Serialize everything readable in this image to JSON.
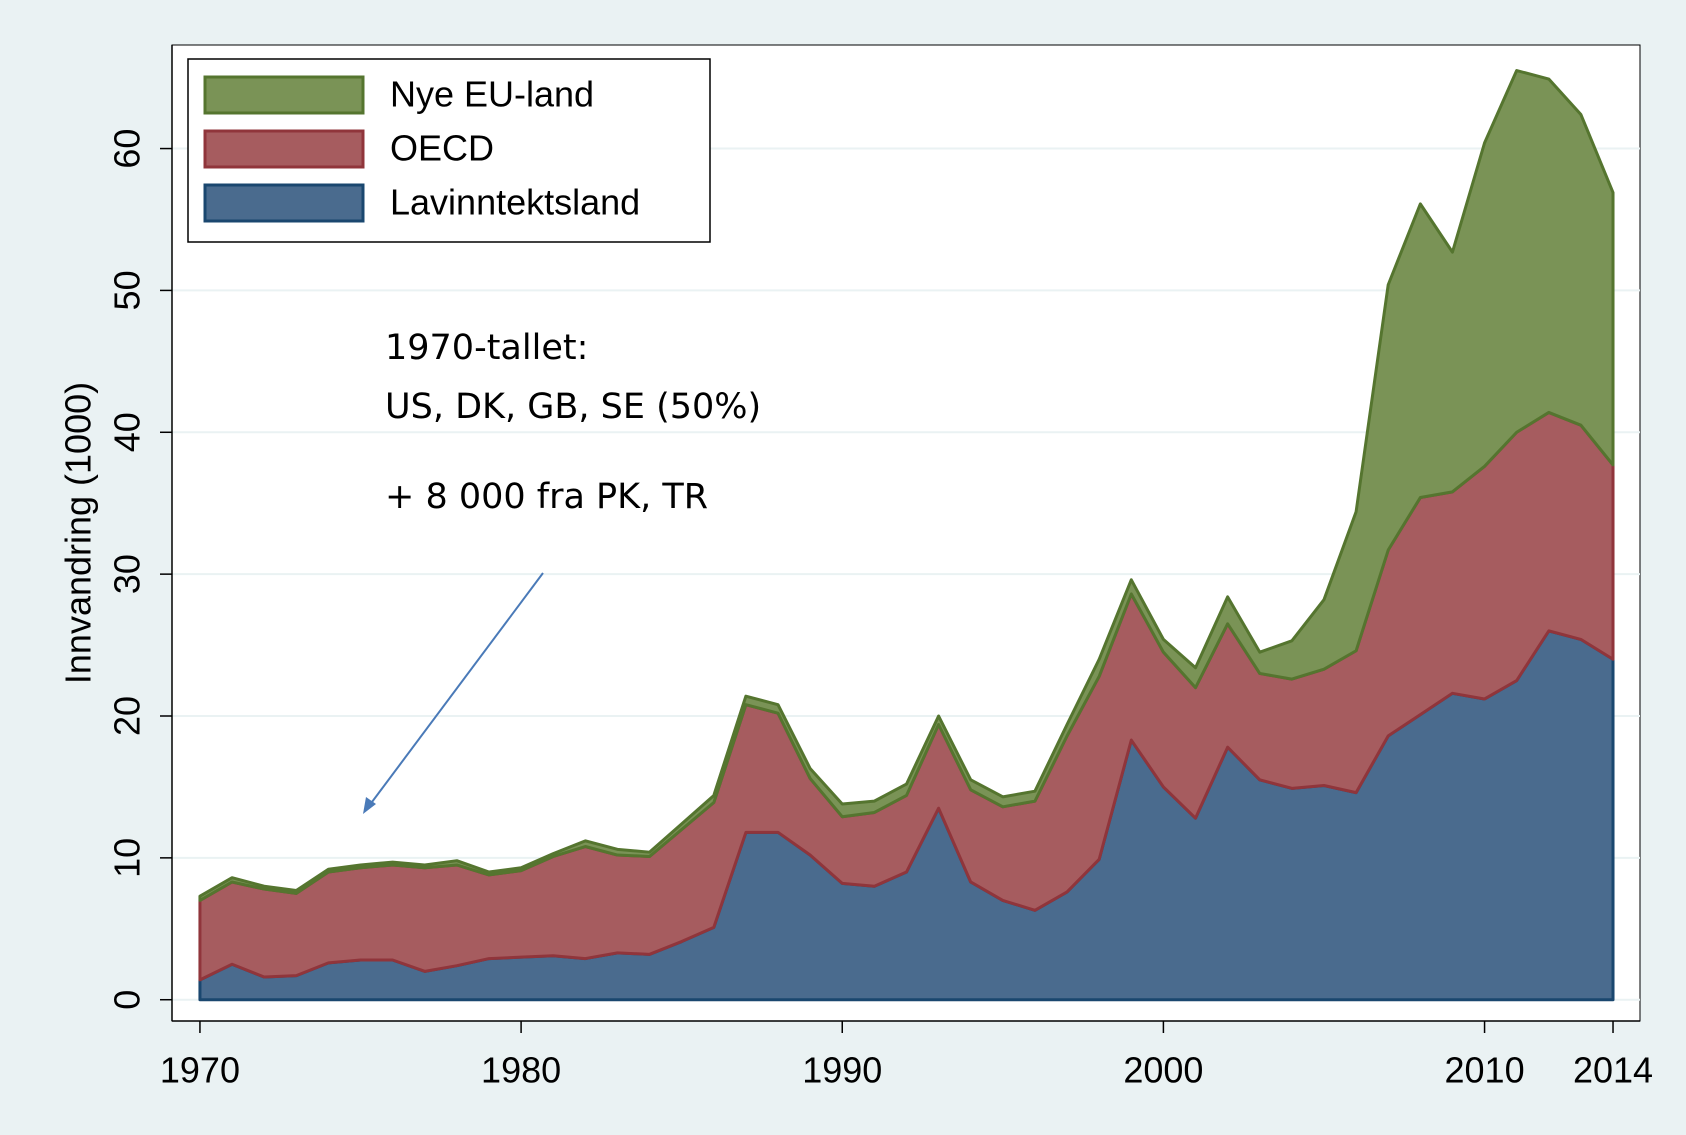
{
  "chart_data": {
    "type": "stacked_area",
    "y_label": "Innvandring (1000)",
    "annotations": [
      "1970-tallet:",
      "US, DK, GB, SE (50%)",
      "+ 8 000 fra PK, TR"
    ],
    "x": [
      1970,
      1971,
      1972,
      1973,
      1974,
      1975,
      1976,
      1977,
      1978,
      1979,
      1980,
      1981,
      1982,
      1983,
      1984,
      1985,
      1986,
      1987,
      1988,
      1989,
      1990,
      1991,
      1992,
      1993,
      1994,
      1995,
      1996,
      1997,
      1998,
      1999,
      2000,
      2001,
      2002,
      2003,
      2004,
      2005,
      2006,
      2007,
      2008,
      2009,
      2010,
      2011,
      2012,
      2013,
      2014
    ],
    "series": [
      {
        "name": "Lavinntektsland",
        "color": "#4a6b8e",
        "edge": "#1a476f",
        "values": [
          1.4,
          2.5,
          1.6,
          1.7,
          2.6,
          2.8,
          2.8,
          2.0,
          2.4,
          2.9,
          3.0,
          3.1,
          2.9,
          3.3,
          3.2,
          4.1,
          5.1,
          11.8,
          11.8,
          10.2,
          8.2,
          8.0,
          9.0,
          13.5,
          8.3,
          7.0,
          6.3,
          7.6,
          9.9,
          18.3,
          15.0,
          12.8,
          17.8,
          15.5,
          14.9,
          15.1,
          14.6,
          18.6,
          20.1,
          21.6,
          21.2,
          22.5,
          26.0,
          25.4,
          24.0
        ]
      },
      {
        "name": "OECD",
        "color": "#a65c5f",
        "edge": "#90353b",
        "values": [
          5.6,
          5.8,
          6.2,
          5.8,
          6.4,
          6.5,
          6.7,
          7.3,
          7.1,
          5.9,
          6.1,
          7.0,
          7.9,
          6.9,
          6.9,
          7.9,
          8.8,
          9.0,
          8.4,
          5.4,
          4.7,
          5.2,
          5.4,
          5.9,
          6.5,
          6.6,
          7.7,
          11.0,
          12.9,
          10.3,
          9.5,
          9.2,
          8.7,
          7.5,
          7.7,
          8.2,
          10.0,
          13.1,
          15.3,
          14.2,
          16.4,
          17.5,
          15.4,
          15.1,
          13.7
        ]
      },
      {
        "name": "Nye EU-land",
        "color": "#7a9356",
        "edge": "#55752f",
        "values": [
          0.3,
          0.3,
          0.2,
          0.2,
          0.2,
          0.2,
          0.2,
          0.2,
          0.3,
          0.2,
          0.2,
          0.2,
          0.4,
          0.4,
          0.3,
          0.4,
          0.5,
          0.6,
          0.6,
          0.7,
          0.9,
          0.8,
          0.8,
          0.6,
          0.7,
          0.7,
          0.7,
          0.8,
          1.2,
          1.0,
          0.9,
          1.4,
          1.9,
          1.5,
          2.7,
          4.9,
          9.8,
          18.7,
          20.7,
          16.9,
          22.8,
          25.5,
          23.5,
          21.9,
          19.2
        ]
      }
    ],
    "xlim": [
      1969.13,
      2014.84
    ],
    "xticks": [
      1970,
      1980,
      1990,
      2000,
      2010,
      2014
    ],
    "ylim": [
      -1.5,
      67.3
    ],
    "yticks": [
      0,
      10,
      20,
      30,
      40,
      50,
      60
    ],
    "grid": true,
    "legend": "top-left"
  }
}
